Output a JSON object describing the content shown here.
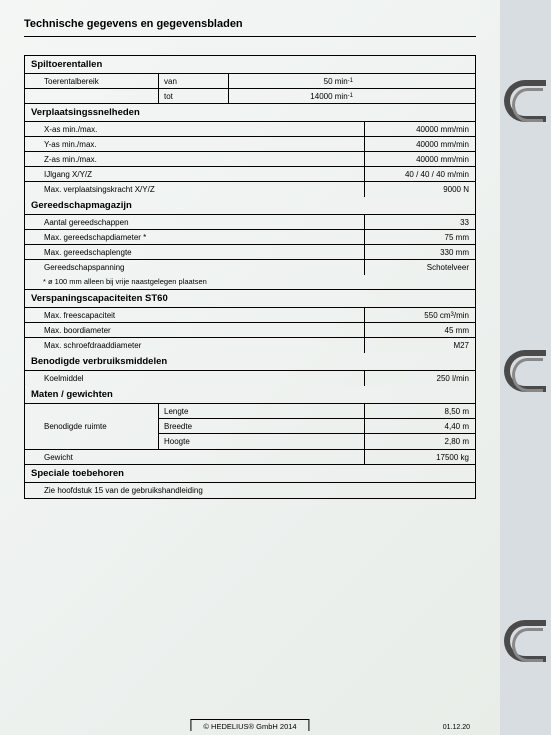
{
  "page_title": "Technische gegevens en gegevensbladen",
  "sections": {
    "spindle": {
      "header": "Spiltoerentallen",
      "range_label": "Toerentalbereik",
      "from_label": "van",
      "from_value": "50 min⁻¹",
      "to_label": "tot",
      "to_value": "14000 min⁻¹"
    },
    "traverse": {
      "header": "Verplaatsingssnelheden",
      "rows": [
        {
          "label": "X-as min./max.",
          "value": "40000 mm/min"
        },
        {
          "label": "Y-as min./max.",
          "value": "40000 mm/min"
        },
        {
          "label": "Z-as min./max.",
          "value": "40000 mm/min"
        },
        {
          "label": "IJlgang X/Y/Z",
          "value": "40 / 40 / 40 m/min"
        },
        {
          "label": "Max. verplaatsingskracht X/Y/Z",
          "value": "9000 N"
        }
      ]
    },
    "tool": {
      "header": "Gereedschapmagazijn",
      "rows": [
        {
          "label": "Aantal gereedschappen",
          "value": "33"
        },
        {
          "label": "Max. gereedschapdiameter *",
          "value": "75 mm"
        },
        {
          "label": "Max. gereedschaplengte",
          "value": "330 mm"
        },
        {
          "label": "Gereedschapspanning",
          "value": "Schotelveer"
        }
      ],
      "footnote": "* ø 100 mm alleen bij vrije naastgelegen plaatsen"
    },
    "capacity": {
      "header": "Verspaningscapaciteiten ST60",
      "rows": [
        {
          "label": "Max. freescapaciteit",
          "value": "550 cm³/min"
        },
        {
          "label": "Max. boordiameter",
          "value": "45 mm"
        },
        {
          "label": "Max. schroefdraaddiameter",
          "value": "M27"
        }
      ]
    },
    "consumables": {
      "header": "Benodigde verbruiksmiddelen",
      "rows": [
        {
          "label": "Koelmiddel",
          "value": "250 l/min"
        }
      ]
    },
    "dimensions": {
      "header": "Maten / gewichten",
      "space_label": "Benodigde ruimte",
      "length_label": "Lengte",
      "length_value": "8,50 m",
      "width_label": "Breedte",
      "width_value": "4,40 m",
      "height_label": "Hoogte",
      "height_value": "2,80 m",
      "weight_label": "Gewicht",
      "weight_value": "17500 kg"
    },
    "accessories": {
      "header": "Speciale toebehoren",
      "note": "Zie hoofdstuk 15 van de gebruikshandleiding"
    }
  },
  "footer": "© HEDELIUS® GmbH 2014",
  "date": "01.12.20"
}
